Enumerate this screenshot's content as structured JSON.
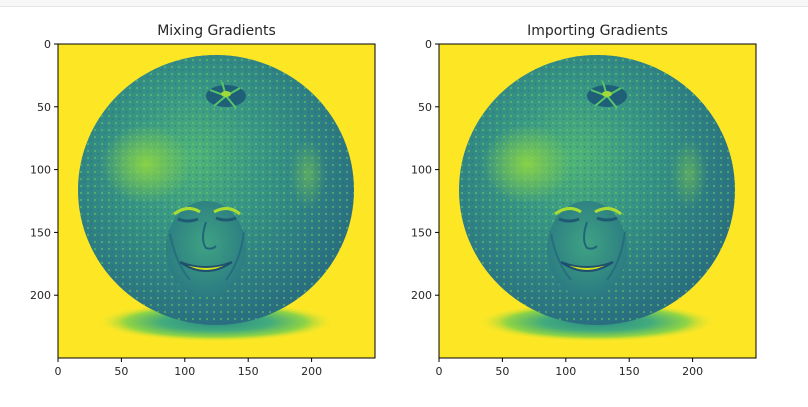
{
  "figure": {
    "panels": [
      {
        "title": "Mixing Gradients"
      },
      {
        "title": "Importing Gradients"
      }
    ]
  },
  "chart_data": [
    {
      "type": "heatmap",
      "title": "Mixing Gradients",
      "colormap": "viridis",
      "image_size": [
        250,
        250
      ],
      "xlim": [
        0,
        250
      ],
      "ylim": [
        250,
        0
      ],
      "xticks": [
        0,
        50,
        100,
        150,
        200
      ],
      "yticks": [
        0,
        50,
        100,
        150,
        200
      ],
      "subject": "orange with a face blended into it (grayscale intensity rendered with viridis)"
    },
    {
      "type": "heatmap",
      "title": "Importing Gradients",
      "colormap": "viridis",
      "image_size": [
        250,
        250
      ],
      "xlim": [
        0,
        250
      ],
      "ylim": [
        250,
        0
      ],
      "xticks": [
        0,
        50,
        100,
        150,
        200
      ],
      "yticks": [
        0,
        50,
        100,
        150,
        200
      ],
      "subject": "orange with a face blended into it (grayscale intensity rendered with viridis)"
    }
  ],
  "colors": {
    "background_yellow": "#fde725",
    "orange_dark": "#2c7c7e",
    "orange_mid": "#3b9a86",
    "orange_light": "#6ccf5e",
    "face_light": "#b5de2b"
  }
}
